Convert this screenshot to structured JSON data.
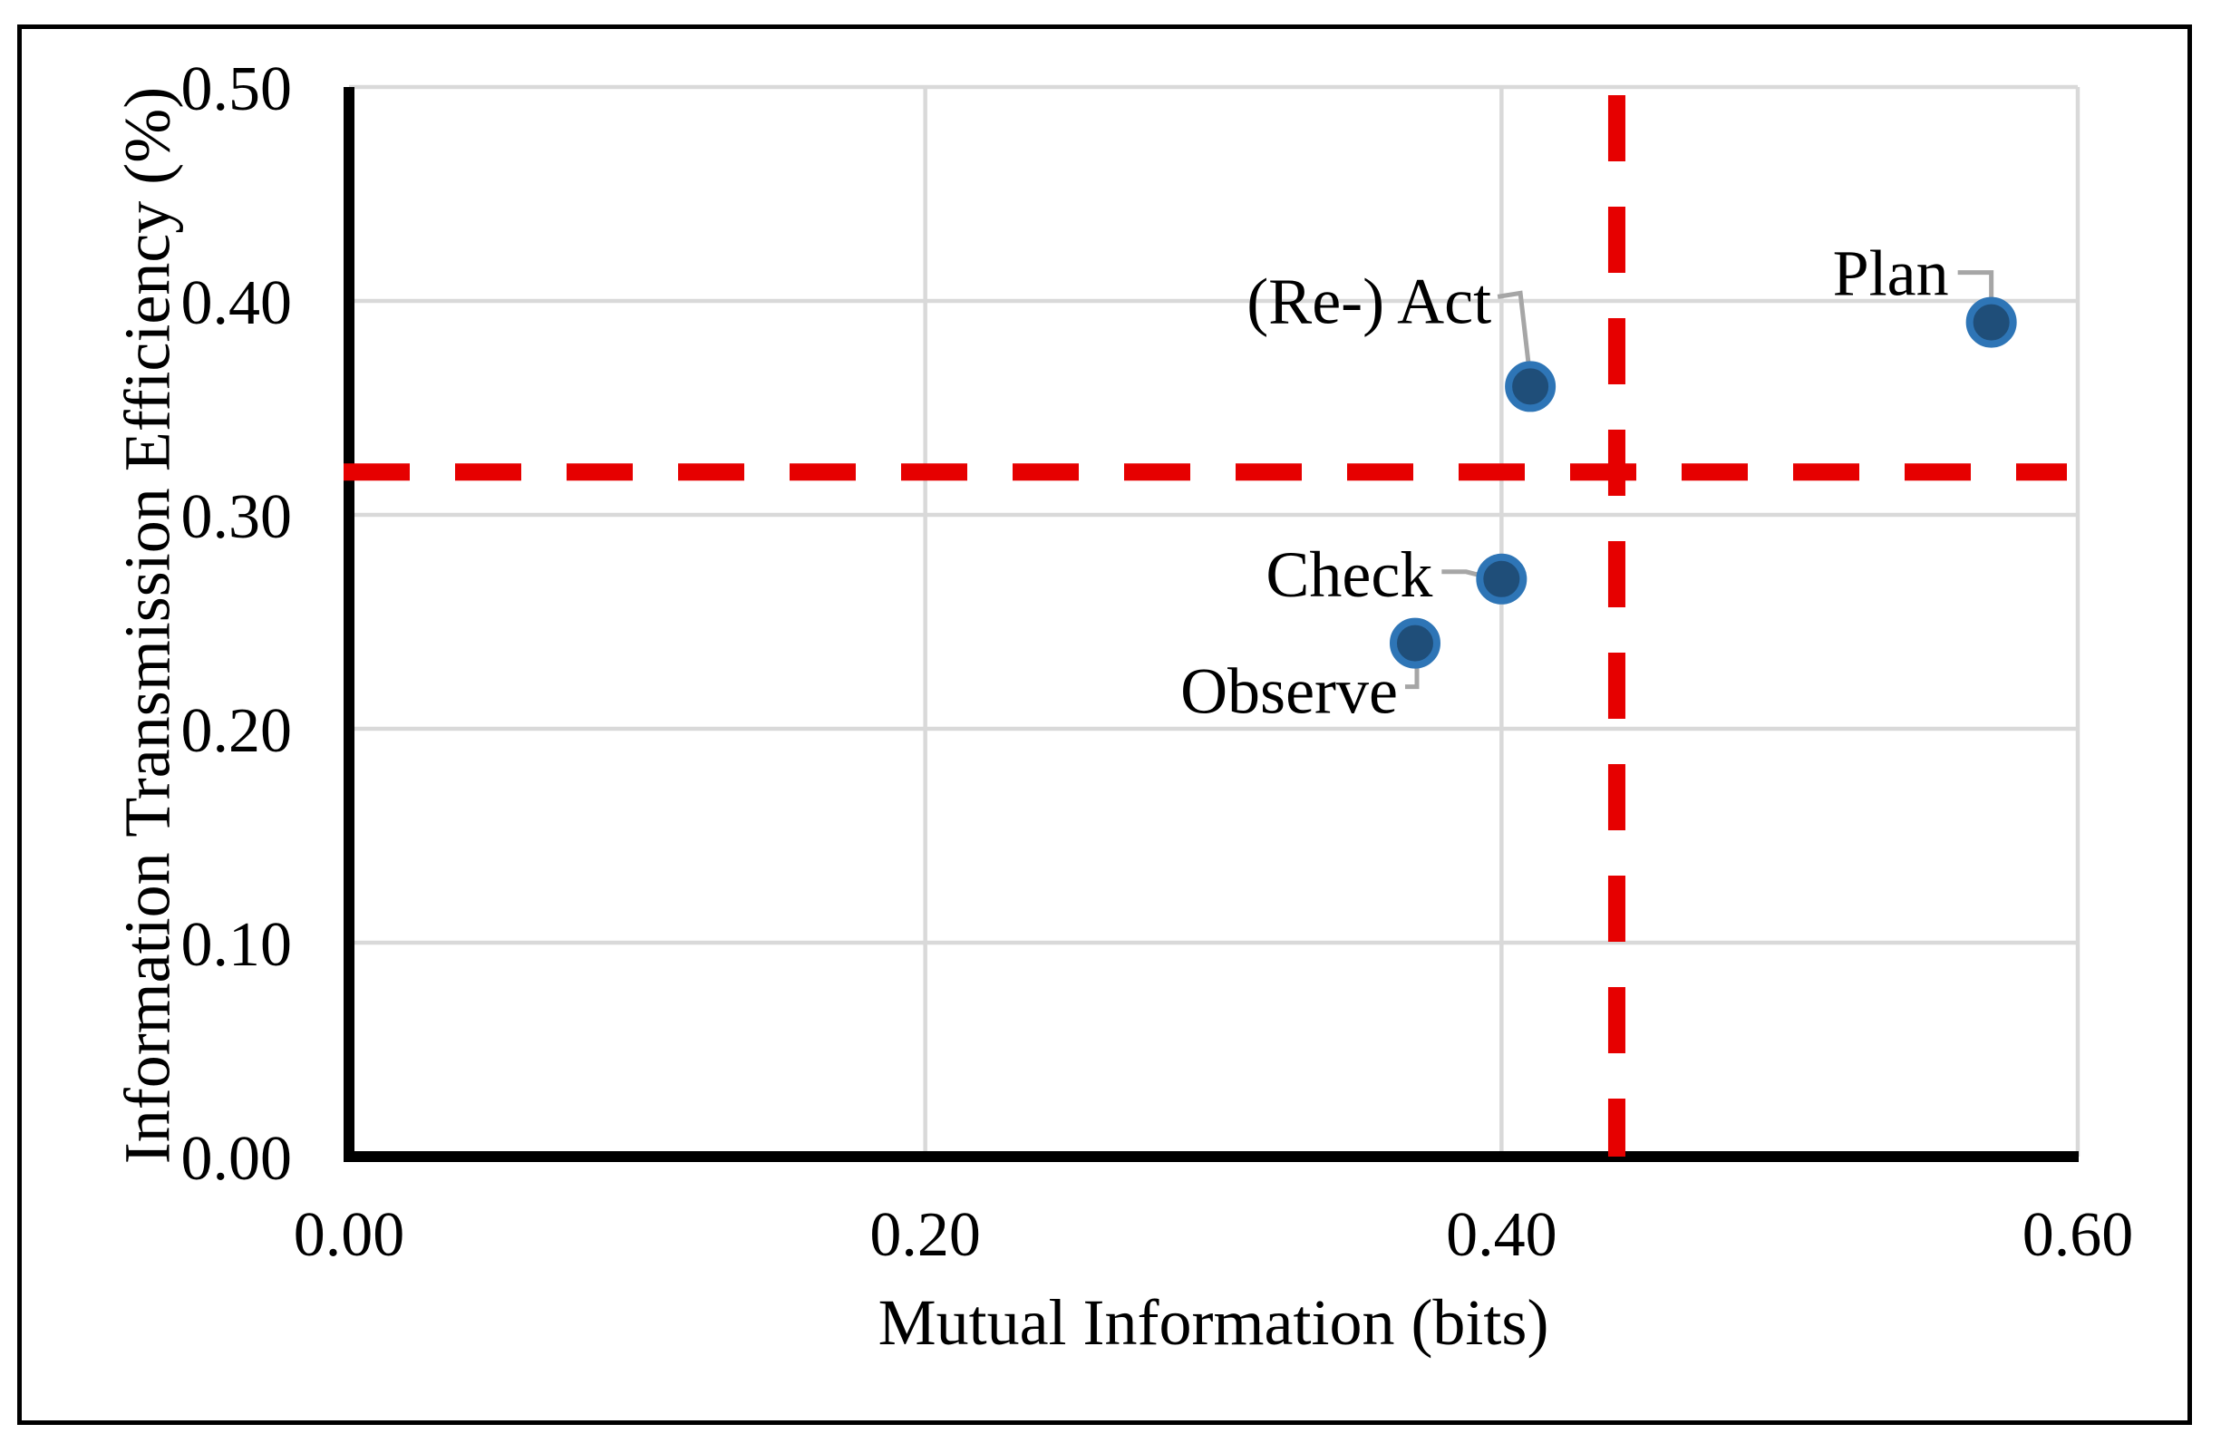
{
  "figure": {
    "background_color": "#ffffff",
    "border_color": "#000000"
  },
  "chart_data": {
    "type": "scatter",
    "title": "",
    "xlabel": "Mutual Information (bits)",
    "ylabel": "Information Transmission Efficiency (%)",
    "xlim": [
      0.0,
      0.6
    ],
    "ylim": [
      0.0,
      0.5
    ],
    "grid": true,
    "x_ticks": [
      {
        "value": 0.0,
        "label": "0.00"
      },
      {
        "value": 0.2,
        "label": "0.20"
      },
      {
        "value": 0.4,
        "label": "0.40"
      },
      {
        "value": 0.6,
        "label": "0.60"
      }
    ],
    "y_ticks": [
      {
        "value": 0.0,
        "label": "0.00"
      },
      {
        "value": 0.1,
        "label": "0.10"
      },
      {
        "value": 0.2,
        "label": "0.20"
      },
      {
        "value": 0.3,
        "label": "0.30"
      },
      {
        "value": 0.4,
        "label": "0.40"
      },
      {
        "value": 0.5,
        "label": "0.50"
      }
    ],
    "points": [
      {
        "label": "Observe",
        "x": 0.37,
        "y": 0.24
      },
      {
        "label": "Check",
        "x": 0.4,
        "y": 0.27
      },
      {
        "label": "(Re-) Act",
        "x": 0.41,
        "y": 0.36
      },
      {
        "label": "Plan",
        "x": 0.57,
        "y": 0.39
      }
    ],
    "reference_lines": [
      {
        "orientation": "vertical",
        "value": 0.44,
        "style": "dashed"
      },
      {
        "orientation": "horizontal",
        "value": 0.32,
        "style": "dashed"
      }
    ],
    "legend": "none",
    "colors": {
      "marker_fill": "#1F4E79",
      "marker_stroke": "#2E75B6",
      "gridline": "#D9D9D9",
      "axis": "#000000",
      "leader_line": "#A6A6A6",
      "threshold_line": "#E60000",
      "text": "#000000"
    }
  }
}
